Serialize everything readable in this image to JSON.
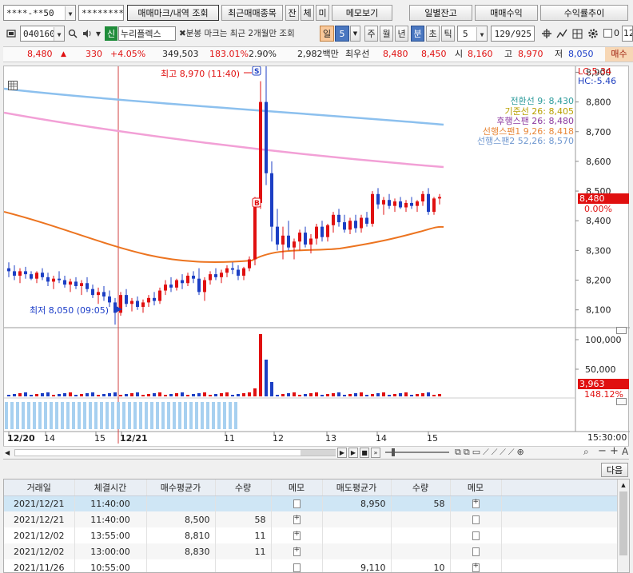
{
  "toolbar1": {
    "account": "****-**50",
    "password": "*********",
    "marks_btn": "매매마크/내역 조회",
    "recent_btn": "최근매매종목",
    "jan": "잔",
    "che": "체",
    "mi": "미",
    "memo_btn": "메모보기",
    "daily_btn": "일별잔고",
    "profit_btn": "매매수익",
    "rate_btn": "수익률추이"
  },
  "toolbar2": {
    "code": "040160",
    "badge": "신",
    "name": "누리플렉스",
    "note": "✖분봉 마크는 최근 2개월만 조회",
    "period_label": "일",
    "period_value": "5",
    "ju": "주",
    "wol": "월",
    "nyeon": "년",
    "bun": "분",
    "cho": "초",
    "tick": "틱",
    "tick_value": "5",
    "count": "129/925",
    "check_label": "0",
    "right_cut": "12"
  },
  "quote": {
    "price": "8,480",
    "change": "330",
    "change_pct": "+4.05%",
    "volume": "349,503",
    "vol_ratio": "183.01%",
    "turnover": "2.90%",
    "amount": "2,982백만",
    "best_label": "최우선",
    "best_ask": "8,480",
    "best_bid": "8,450",
    "open_label": "시",
    "open": "8,160",
    "high_label": "고",
    "high": "8,970",
    "low_label": "저",
    "low": "8,050",
    "side": "매수"
  },
  "chart_data": {
    "type": "candlestick",
    "ylim": [
      8040,
      8920
    ],
    "y_ticks": [
      "8,100",
      "8,200",
      "8,300",
      "8,400",
      "8,500",
      "8,600",
      "8,700",
      "8,800",
      "8,900"
    ],
    "lc_label": "LC:5.34",
    "hc_label": "HC:-5.46",
    "high_annotation": "최고 8,970 (11:40)",
    "low_annotation": "최저 8,050 (09:05)",
    "legend": [
      {
        "name": "전환선 9",
        "value": "8,430",
        "color": "#2e9c9c"
      },
      {
        "name": "기준선 26",
        "value": "8,405",
        "color": "#b8a000"
      },
      {
        "name": "후행스팬 26",
        "value": "8,480",
        "color": "#8c3aa0"
      },
      {
        "name": "선행스팬1 9,26",
        "value": "8,418",
        "color": "#e8883a"
      },
      {
        "name": "선행스팬2 52,26",
        "value": "8,570",
        "color": "#7098d0"
      }
    ],
    "price_tag": "8,480",
    "price_tag_pct": "0.00%",
    "volume_ticks": [
      "100,000",
      "50,000"
    ],
    "volume_tag": "3,963",
    "volume_tag_pct": "148.12%",
    "x_labels": [
      "12/20",
      "14",
      "15",
      "12/21",
      "11",
      "12",
      "13",
      "14",
      "15"
    ],
    "time_label": "15:30:00",
    "markers": {
      "sell": "S",
      "buy": "B"
    }
  },
  "bottom_toolbar": {
    "next_btn": "다음"
  },
  "trades": {
    "headers": [
      "거래일",
      "체결시간",
      "매수평균가",
      "수량",
      "메모",
      "매도평균가",
      "수량",
      "메모"
    ],
    "rows": [
      {
        "date": "2021/12/21",
        "time": "11:40:00",
        "buy_avg": "",
        "buy_qty": "",
        "sell_avg": "8,950",
        "sell_qty": "58"
      },
      {
        "date": "2021/12/21",
        "time": "11:40:00",
        "buy_avg": "8,500",
        "buy_qty": "58",
        "sell_avg": "",
        "sell_qty": ""
      },
      {
        "date": "2021/12/02",
        "time": "13:55:00",
        "buy_avg": "8,810",
        "buy_qty": "11",
        "sell_avg": "",
        "sell_qty": ""
      },
      {
        "date": "2021/12/02",
        "time": "13:00:00",
        "buy_avg": "8,830",
        "buy_qty": "11",
        "sell_avg": "",
        "sell_qty": ""
      },
      {
        "date": "2021/11/26",
        "time": "10:55:00",
        "buy_avg": "",
        "buy_qty": "",
        "sell_avg": "9,110",
        "sell_qty": "10"
      }
    ]
  }
}
